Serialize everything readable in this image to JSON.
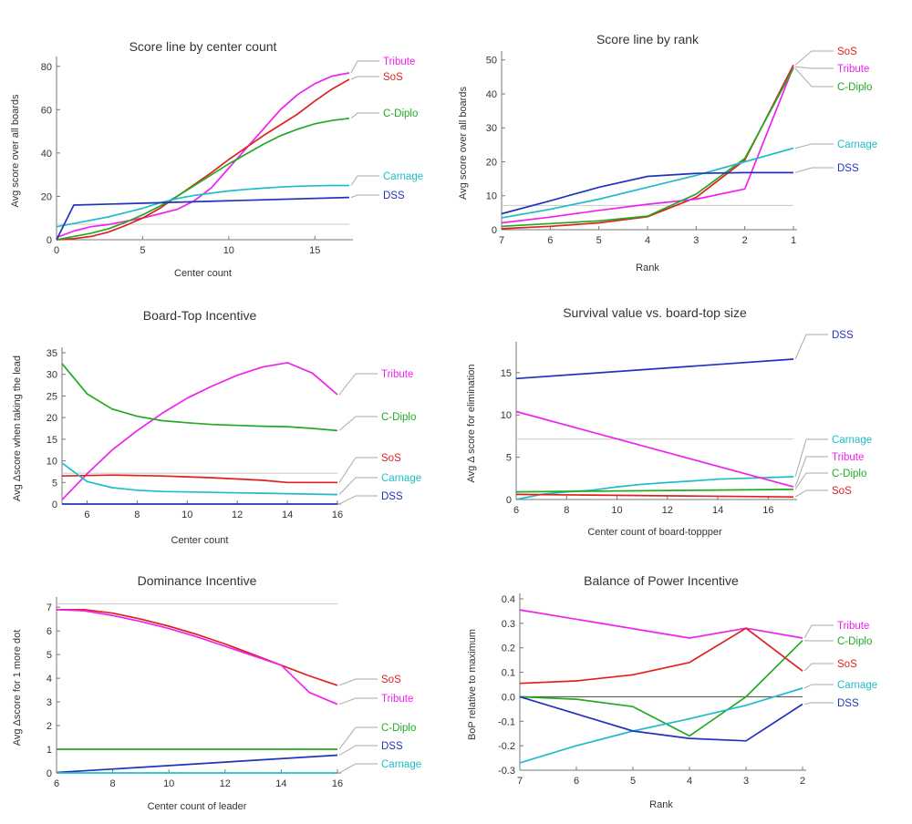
{
  "chart_data": [
    {
      "type": "line",
      "title": "Score line by center count",
      "xlabel": "Center count",
      "ylabel": "Avg score over all boards",
      "xlim": [
        0,
        17
      ],
      "ylim": [
        0,
        82
      ],
      "xticks": [
        0,
        5,
        10,
        15
      ],
      "yticks": [
        0,
        20,
        40,
        60,
        80
      ],
      "reference_line": 7.14,
      "series": [
        {
          "name": "Tribute",
          "color": "#ee22ee",
          "x": [
            0,
            1,
            2,
            3,
            4,
            5,
            6,
            7,
            8,
            9,
            10,
            11,
            12,
            13,
            14,
            15,
            16,
            17
          ],
          "y": [
            1,
            4,
            6,
            7,
            8.5,
            10,
            12,
            14,
            18,
            24,
            33,
            42,
            51,
            60,
            67,
            72,
            75.5,
            77
          ]
        },
        {
          "name": "SoS",
          "color": "#e02020",
          "x": [
            0,
            1,
            2,
            3,
            4,
            5,
            6,
            7,
            8,
            9,
            10,
            11,
            12,
            13,
            14,
            15,
            16,
            17
          ],
          "y": [
            0,
            0.5,
            1.5,
            3.5,
            6.5,
            10,
            14.5,
            20,
            25.5,
            31,
            37,
            42.5,
            48,
            53,
            58,
            64,
            69.5,
            74
          ]
        },
        {
          "name": "C-Diplo",
          "color": "#22aa22",
          "x": [
            0,
            1,
            2,
            3,
            4,
            5,
            6,
            7,
            8,
            9,
            10,
            11,
            12,
            13,
            14,
            15,
            16,
            17
          ],
          "y": [
            0,
            1.5,
            3,
            5,
            8,
            11.5,
            15.5,
            20,
            25,
            30,
            35,
            39.5,
            44,
            48,
            51,
            53.5,
            55,
            56
          ]
        },
        {
          "name": "Carnage",
          "color": "#20bcc8",
          "x": [
            0,
            1,
            2,
            3,
            4,
            5,
            6,
            7,
            8,
            9,
            10,
            11,
            12,
            13,
            14,
            15,
            16,
            17
          ],
          "y": [
            6,
            7.5,
            9,
            10.5,
            12.5,
            14.5,
            17,
            19,
            20.5,
            21.5,
            22.5,
            23.2,
            23.8,
            24.3,
            24.7,
            24.9,
            25,
            25
          ]
        },
        {
          "name": "DSS",
          "color": "#2233bb",
          "x": [
            0,
            1,
            17
          ],
          "y": [
            0,
            16,
            19.5
          ]
        }
      ]
    },
    {
      "type": "line",
      "title": "Score line by rank",
      "xlabel": "Rank",
      "ylabel": "Avg score over all boards",
      "xlim": [
        7,
        1
      ],
      "ylim": [
        0,
        51
      ],
      "xticks": [
        7,
        6,
        5,
        4,
        3,
        2,
        1
      ],
      "yticks": [
        0,
        10,
        20,
        30,
        40,
        50
      ],
      "reference_line": 7.14,
      "series": [
        {
          "name": "SoS",
          "color": "#e02020",
          "x": [
            7,
            6,
            5,
            4,
            3,
            2,
            1
          ],
          "y": [
            0.3,
            1,
            2,
            3.8,
            9.5,
            20.5,
            48.5
          ]
        },
        {
          "name": "Tribute",
          "color": "#ee22ee",
          "x": [
            7,
            6,
            5,
            4,
            3,
            2,
            1
          ],
          "y": [
            2,
            3.7,
            5.7,
            7.5,
            9,
            12,
            48
          ]
        },
        {
          "name": "C-Diplo",
          "color": "#22aa22",
          "x": [
            7,
            6,
            5,
            4,
            3,
            2,
            1
          ],
          "y": [
            1,
            1.8,
            2.6,
            4,
            10.5,
            21,
            47.5
          ]
        },
        {
          "name": "Carnage",
          "color": "#20bcc8",
          "x": [
            7,
            6,
            5,
            4,
            3,
            2,
            1
          ],
          "y": [
            3.5,
            6,
            9,
            12.5,
            16,
            20,
            24
          ]
        },
        {
          "name": "DSS",
          "color": "#2233bb",
          "x": [
            7,
            6,
            5,
            4,
            3,
            2,
            1
          ],
          "y": [
            4.7,
            8.5,
            12.5,
            15.7,
            16.6,
            16.8,
            16.8
          ]
        }
      ]
    },
    {
      "type": "line",
      "title": "Board-Top Incentive",
      "xlabel": "Center count",
      "ylabel": "Avg Δscore when taking the lead",
      "xlim": [
        5,
        16
      ],
      "ylim": [
        0,
        35
      ],
      "xticks": [
        6,
        8,
        10,
        12,
        14,
        16
      ],
      "yticks": [
        0,
        5,
        10,
        15,
        20,
        25,
        30,
        35
      ],
      "reference_line": 7.14,
      "series": [
        {
          "name": "Tribute",
          "color": "#ee22ee",
          "x": [
            5,
            6,
            7,
            8,
            9,
            10,
            11,
            12,
            13,
            14,
            15,
            16
          ],
          "y": [
            1,
            7,
            12.5,
            17,
            21,
            24.5,
            27.3,
            29.8,
            31.7,
            32.7,
            30.3,
            25.3
          ]
        },
        {
          "name": "C-Diplo",
          "color": "#22aa22",
          "x": [
            5,
            6,
            7,
            8,
            9,
            10,
            11,
            12,
            13,
            14,
            15,
            16
          ],
          "y": [
            32.5,
            25.5,
            22,
            20.3,
            19.3,
            18.8,
            18.4,
            18.2,
            18,
            17.9,
            17.5,
            17
          ]
        },
        {
          "name": "SoS",
          "color": "#e02020",
          "x": [
            5,
            6,
            7,
            8,
            9,
            10,
            11,
            12,
            13,
            14,
            15,
            16
          ],
          "y": [
            6.5,
            6.6,
            6.7,
            6.6,
            6.5,
            6.3,
            6.1,
            5.8,
            5.5,
            5,
            5,
            5
          ]
        },
        {
          "name": "Carnage",
          "color": "#20bcc8",
          "x": [
            5,
            6,
            7,
            8,
            9,
            10,
            11,
            12,
            13,
            14,
            15,
            16
          ],
          "y": [
            9.5,
            5.2,
            3.8,
            3.2,
            2.9,
            2.8,
            2.7,
            2.6,
            2.5,
            2.4,
            2.3,
            2.2
          ]
        },
        {
          "name": "DSS",
          "color": "#2233bb",
          "x": [
            5,
            16
          ],
          "y": [
            0,
            0
          ]
        }
      ]
    },
    {
      "type": "line",
      "title": "Survival value vs. board-top size",
      "xlabel": "Center count of board-toppper",
      "ylabel": "Avg Δ score for elimination",
      "xlim": [
        6,
        17
      ],
      "ylim": [
        0,
        18
      ],
      "xticks": [
        6,
        8,
        10,
        12,
        14,
        16
      ],
      "yticks": [
        0,
        5,
        10,
        15
      ],
      "reference_line": 7.14,
      "series": [
        {
          "name": "DSS",
          "color": "#2233bb",
          "x": [
            6,
            17
          ],
          "y": [
            14.3,
            16.6
          ]
        },
        {
          "name": "Carnage",
          "color": "#20bcc8",
          "x": [
            6,
            7,
            8,
            9,
            10,
            11,
            12,
            13,
            14,
            15,
            16,
            17
          ],
          "y": [
            0,
            0.6,
            0.9,
            1.1,
            1.5,
            1.8,
            2,
            2.2,
            2.4,
            2.5,
            2.6,
            2.7
          ]
        },
        {
          "name": "Tribute",
          "color": "#ee22ee",
          "x": [
            6,
            17
          ],
          "y": [
            10.4,
            1.5
          ]
        },
        {
          "name": "C-Diplo",
          "color": "#22aa22",
          "x": [
            6,
            17
          ],
          "y": [
            0.9,
            1.2
          ]
        },
        {
          "name": "SoS",
          "color": "#e02020",
          "x": [
            6,
            17
          ],
          "y": [
            0.6,
            0.3
          ]
        }
      ]
    },
    {
      "type": "line",
      "title": "Dominance Incentive",
      "xlabel": "Center count of leader",
      "ylabel": "Avg Δscore for 1 more dot",
      "xlim": [
        6,
        16
      ],
      "ylim": [
        0,
        7.2
      ],
      "xticks": [
        6,
        8,
        10,
        12,
        14,
        16
      ],
      "yticks": [
        0,
        1,
        2,
        3,
        4,
        5,
        6,
        7
      ],
      "reference_line": 7.14,
      "series": [
        {
          "name": "SoS",
          "color": "#e02020",
          "x": [
            6,
            7,
            8,
            9,
            10,
            11,
            12,
            13,
            14,
            15,
            16
          ],
          "y": [
            6.9,
            6.9,
            6.75,
            6.5,
            6.2,
            5.85,
            5.45,
            5,
            4.55,
            4.1,
            3.7
          ]
        },
        {
          "name": "Tribute",
          "color": "#ee22ee",
          "x": [
            6,
            7,
            8,
            9,
            10,
            11,
            12,
            13,
            14,
            15,
            16
          ],
          "y": [
            6.9,
            6.85,
            6.65,
            6.4,
            6.1,
            5.75,
            5.35,
            4.95,
            4.55,
            3.4,
            2.9
          ]
        },
        {
          "name": "C-Diplo",
          "color": "#22aa22",
          "x": [
            6,
            16
          ],
          "y": [
            1,
            1
          ]
        },
        {
          "name": "DSS",
          "color": "#2233bb",
          "x": [
            6,
            16
          ],
          "y": [
            0.02,
            0.75
          ]
        },
        {
          "name": "Carnage",
          "color": "#20bcc8",
          "x": [
            6,
            16
          ],
          "y": [
            0,
            0
          ]
        }
      ]
    },
    {
      "type": "line",
      "title": "Balance of Power Incentive",
      "xlabel": "Rank",
      "ylabel": "BoP relative to maximum",
      "xlim": [
        7,
        2
      ],
      "ylim": [
        -0.3,
        0.4
      ],
      "xticks": [
        7,
        6,
        5,
        4,
        3,
        2
      ],
      "yticks": [
        0.4,
        0.3,
        0.2,
        0.1,
        0.0,
        -0.1,
        -0.2,
        -0.3
      ],
      "ytick_labels": [
        "0.4",
        "0.3",
        "0.2",
        "0.1",
        "0.0",
        "-0.1",
        "-0.2",
        "-0.3"
      ],
      "reference_line": 0,
      "series": [
        {
          "name": "Tribute",
          "color": "#ee22ee",
          "x": [
            7,
            4,
            3,
            2
          ],
          "y": [
            0.355,
            0.24,
            0.28,
            0.24
          ]
        },
        {
          "name": "C-Diplo",
          "color": "#22aa22",
          "x": [
            7,
            6,
            5,
            4,
            3,
            2
          ],
          "y": [
            0,
            -0.01,
            -0.04,
            -0.16,
            0,
            0.23
          ]
        },
        {
          "name": "SoS",
          "color": "#e02020",
          "x": [
            7,
            6,
            5,
            4,
            3,
            2
          ],
          "y": [
            0.055,
            0.065,
            0.09,
            0.14,
            0.28,
            0.105
          ]
        },
        {
          "name": "Carnage",
          "color": "#20bcc8",
          "x": [
            7,
            6,
            5,
            4,
            3,
            2
          ],
          "y": [
            -0.27,
            -0.2,
            -0.14,
            -0.09,
            -0.035,
            0.035
          ]
        },
        {
          "name": "DSS",
          "color": "#2233bb",
          "x": [
            7,
            6,
            5,
            4,
            3,
            2
          ],
          "y": [
            0,
            -0.07,
            -0.14,
            -0.17,
            -0.18,
            -0.03
          ]
        }
      ]
    }
  ]
}
